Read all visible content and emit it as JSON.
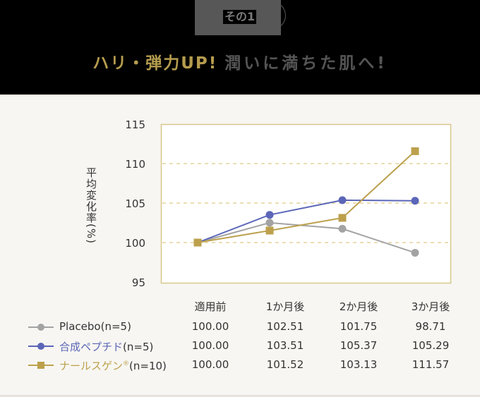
{
  "header": {
    "badge": "その1",
    "title_gold": "ハリ・弾力UP!",
    "title_gray": "潤いに満ちた肌へ!"
  },
  "colors": {
    "placebo": "#a3a3a3",
    "peptide": "#5b66b8",
    "nars": "#bca04c",
    "grid": "#e3d49a",
    "frame": "#d8c88a"
  },
  "chart_data": {
    "type": "line",
    "title": "ハリ・弾力UP! 潤いに満ちた肌へ!",
    "xlabel": "",
    "ylabel": "平均変化率(%)",
    "categories": [
      "適用前",
      "1か月後",
      "2か月後",
      "3か月後"
    ],
    "ylim": [
      95,
      115
    ],
    "yticks": [
      "115",
      "110",
      "105",
      "100",
      "95"
    ],
    "grid": "dashed horizontal at 100, 105, 110",
    "legend_position": "bottom-left (table)",
    "series": [
      {
        "name": "Placebo",
        "n": "(n=5)",
        "marker": "circle",
        "color": "#a3a3a3",
        "values": [
          100.0,
          102.51,
          101.75,
          98.71
        ]
      },
      {
        "name": "合成ペプチド",
        "n": "(n=5)",
        "marker": "circle",
        "color": "#5b66b8",
        "values": [
          100.0,
          103.51,
          105.37,
          105.29
        ]
      },
      {
        "name": "ナールスゲン®",
        "n": "(n=10)",
        "marker": "square",
        "color": "#bca04c",
        "values": [
          100.0,
          101.52,
          103.13,
          111.57
        ]
      }
    ]
  },
  "table": {
    "columns": [
      "適用前",
      "1か月後",
      "2か月後",
      "3か月後"
    ],
    "rows": [
      {
        "name": "Placebo",
        "n": "(n=5)",
        "values": [
          "100.00",
          "102.51",
          "101.75",
          "98.71"
        ]
      },
      {
        "name": "合成ペプチド",
        "n": "(n=5)",
        "values": [
          "100.00",
          "103.51",
          "105.37",
          "105.29"
        ]
      },
      {
        "name": "ナールスゲン",
        "sup": "®",
        "n": "(n=10)",
        "values": [
          "100.00",
          "101.52",
          "103.13",
          "111.57"
        ]
      }
    ]
  }
}
